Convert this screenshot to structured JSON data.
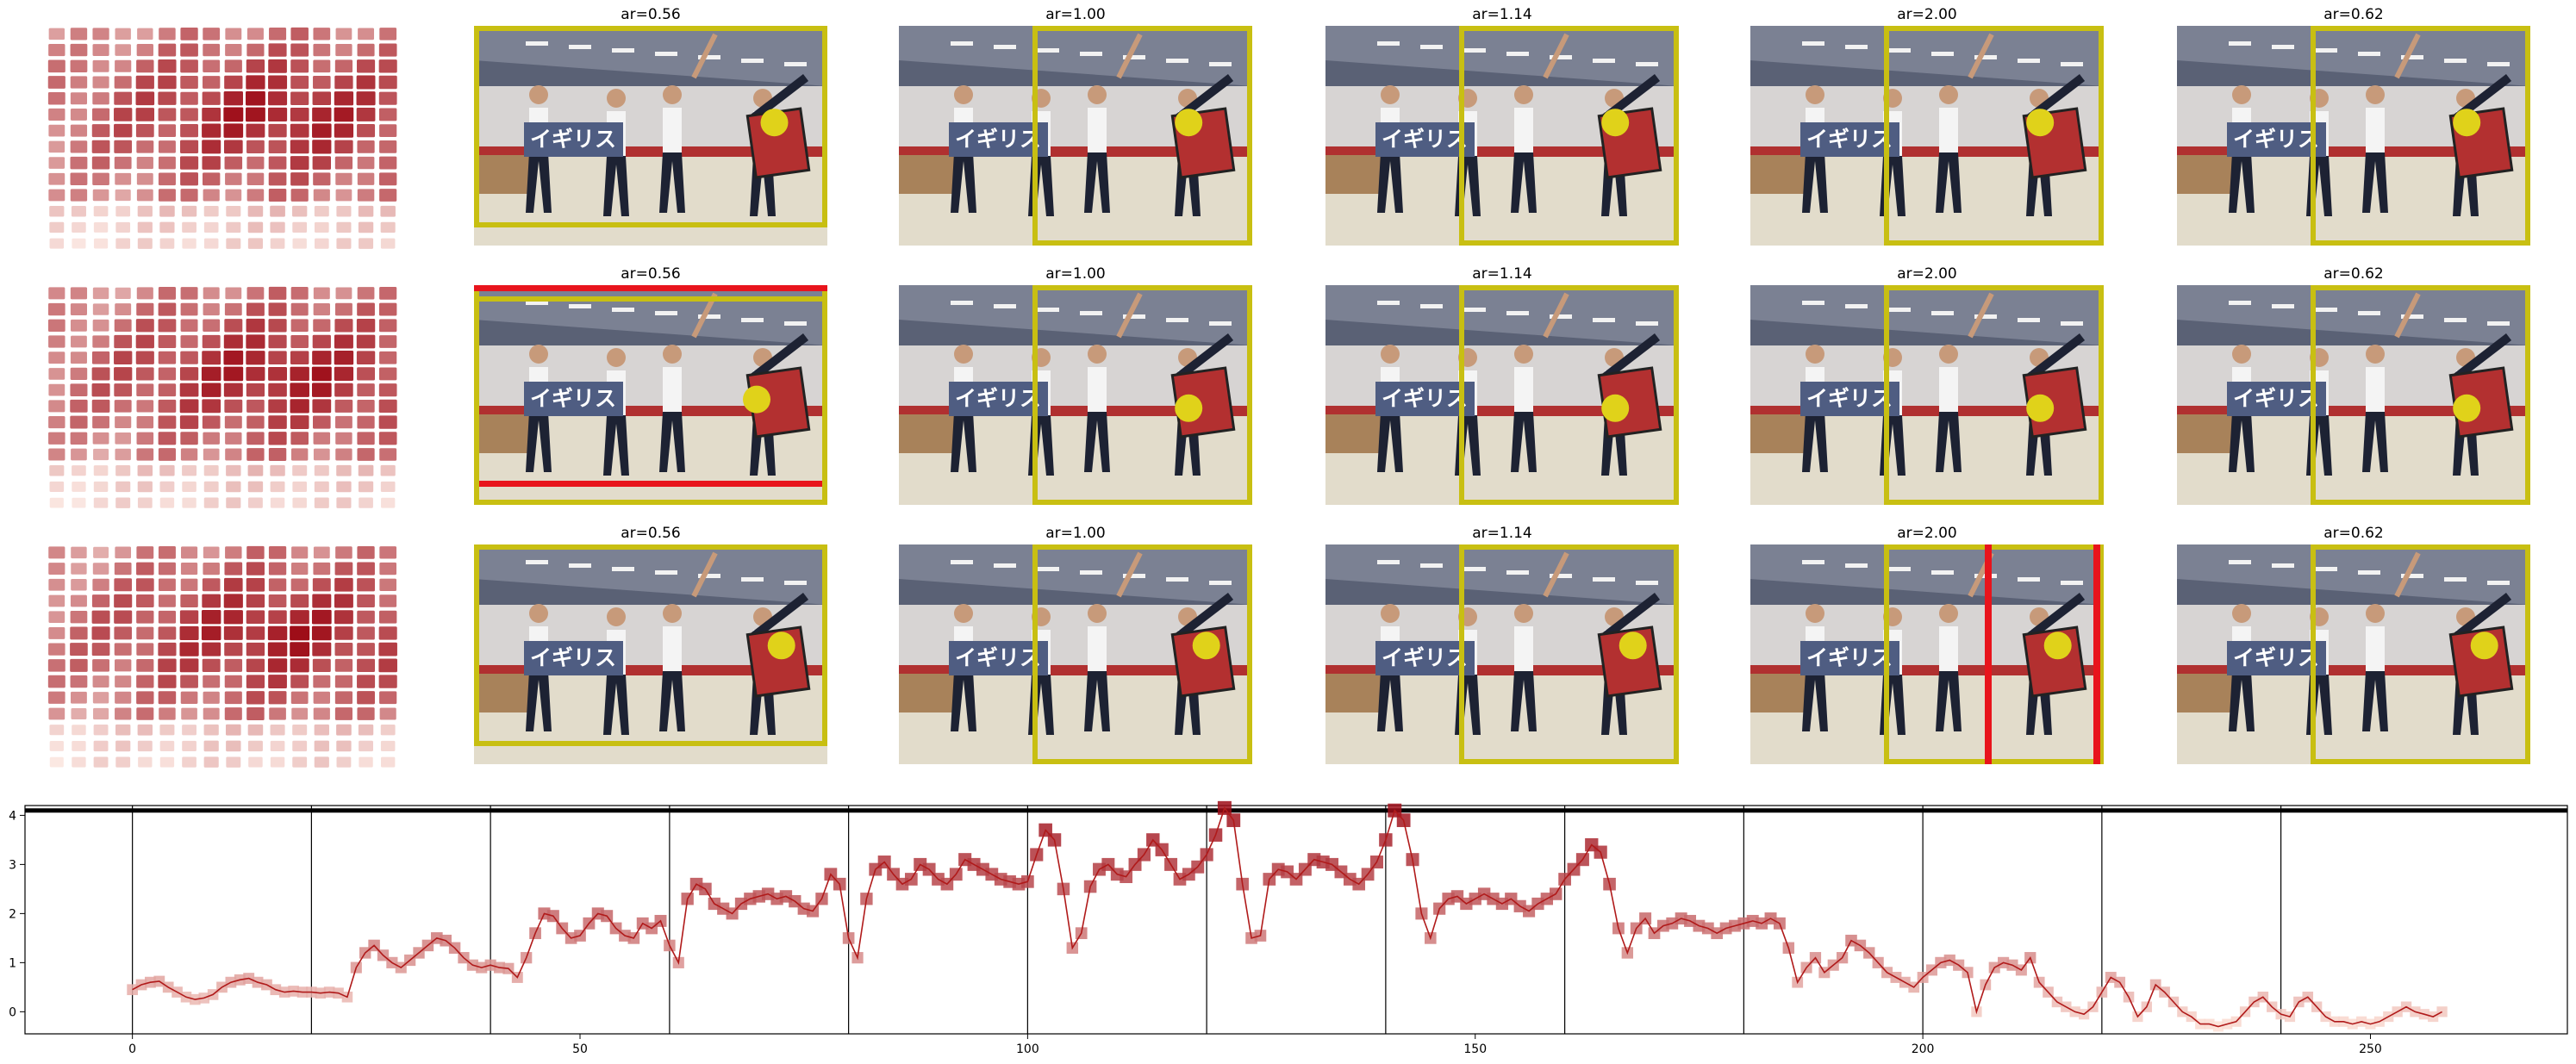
{
  "grid": {
    "rows": [
      {
        "cells": [
          {
            "title": "ar=0.56",
            "box": "yellow",
            "marks": [
              {
                "kind": "disc",
                "u": 0.85,
                "v": 0.44
              }
            ]
          },
          {
            "title": "ar=1.00",
            "box": "yellow",
            "marks": [
              {
                "kind": "disc",
                "u": 0.82,
                "v": 0.44
              }
            ]
          },
          {
            "title": "ar=1.14",
            "box": "yellow",
            "marks": [
              {
                "kind": "disc",
                "u": 0.82,
                "v": 0.44
              }
            ]
          },
          {
            "title": "ar=2.00",
            "box": "yellow",
            "marks": [
              {
                "kind": "disc",
                "u": 0.82,
                "v": 0.44
              }
            ]
          },
          {
            "title": "ar=0.62",
            "box": "yellow",
            "marks": [
              {
                "kind": "disc",
                "u": 0.82,
                "v": 0.44
              }
            ]
          }
        ]
      },
      {
        "cells": [
          {
            "title": "ar=0.56",
            "box": "yellow-red-h",
            "marks": [
              {
                "kind": "disc",
                "u": 0.8,
                "v": 0.52
              }
            ]
          },
          {
            "title": "ar=1.00",
            "box": "yellow",
            "marks": [
              {
                "kind": "disc",
                "u": 0.82,
                "v": 0.56
              }
            ]
          },
          {
            "title": "ar=1.14",
            "box": "yellow",
            "marks": [
              {
                "kind": "disc",
                "u": 0.82,
                "v": 0.56
              }
            ]
          },
          {
            "title": "ar=2.00",
            "box": "yellow",
            "marks": [
              {
                "kind": "disc",
                "u": 0.82,
                "v": 0.56
              }
            ]
          },
          {
            "title": "ar=0.62",
            "box": "yellow",
            "marks": [
              {
                "kind": "disc",
                "u": 0.82,
                "v": 0.56
              }
            ]
          }
        ]
      },
      {
        "cells": [
          {
            "title": "ar=0.56",
            "box": "yellow",
            "marks": [
              {
                "kind": "disc",
                "u": 0.87,
                "v": 0.46
              }
            ]
          },
          {
            "title": "ar=1.00",
            "box": "yellow",
            "marks": [
              {
                "kind": "disc",
                "u": 0.87,
                "v": 0.46
              }
            ]
          },
          {
            "title": "ar=1.14",
            "box": "yellow",
            "marks": [
              {
                "kind": "disc",
                "u": 0.87,
                "v": 0.46
              }
            ]
          },
          {
            "title": "ar=2.00",
            "box": "yellow-red-v",
            "marks": [
              {
                "kind": "disc",
                "u": 0.87,
                "v": 0.46
              }
            ]
          },
          {
            "title": "ar=0.62",
            "box": "yellow",
            "marks": [
              {
                "kind": "disc",
                "u": 0.87,
                "v": 0.46
              }
            ]
          }
        ]
      }
    ],
    "photo_text": "イギリス"
  },
  "chart_data": {
    "type": "line",
    "title": "",
    "xlabel": "",
    "ylabel": "",
    "xlim": [
      -12,
      272
    ],
    "ylim": [
      -0.45,
      4.2
    ],
    "xticks": [
      0,
      50,
      100,
      150,
      200,
      250
    ],
    "yticks": [
      0,
      1,
      2,
      3,
      4
    ],
    "vlines": [
      0,
      20,
      40,
      60,
      80,
      100,
      120,
      140,
      160,
      180,
      200,
      220,
      240
    ],
    "hline": 4.1,
    "grid": false,
    "series": [
      {
        "x_start": 0,
        "values": [
          0.45,
          0.55,
          0.6,
          0.62,
          0.5,
          0.4,
          0.3,
          0.25,
          0.28,
          0.35,
          0.5,
          0.6,
          0.65,
          0.68,
          0.6,
          0.55,
          0.45,
          0.4,
          0.42,
          0.4,
          0.4,
          0.38,
          0.4,
          0.38,
          0.3,
          0.9,
          1.2,
          1.35,
          1.15,
          1.0,
          0.9,
          1.05,
          1.2,
          1.35,
          1.5,
          1.45,
          1.3,
          1.1,
          0.95,
          0.9,
          0.95,
          0.9,
          0.88,
          0.7,
          1.1,
          1.6,
          2.0,
          1.95,
          1.7,
          1.5,
          1.55,
          1.8,
          2.0,
          1.95,
          1.7,
          1.55,
          1.5,
          1.8,
          1.7,
          1.85,
          1.35,
          1.0,
          2.3,
          2.6,
          2.5,
          2.2,
          2.1,
          2.0,
          2.2,
          2.3,
          2.35,
          2.4,
          2.3,
          2.35,
          2.25,
          2.1,
          2.05,
          2.3,
          2.8,
          2.6,
          1.5,
          1.1,
          2.3,
          2.9,
          3.05,
          2.8,
          2.6,
          2.7,
          3.0,
          2.9,
          2.7,
          2.6,
          2.8,
          3.1,
          3.0,
          2.9,
          2.8,
          2.7,
          2.65,
          2.6,
          2.65,
          3.2,
          3.7,
          3.5,
          2.5,
          1.3,
          1.6,
          2.55,
          2.9,
          3.0,
          2.8,
          2.75,
          3.0,
          3.2,
          3.5,
          3.3,
          3.0,
          2.7,
          2.8,
          2.95,
          3.2,
          3.6,
          4.15,
          3.9,
          2.6,
          1.5,
          1.55,
          2.7,
          2.9,
          2.85,
          2.7,
          2.9,
          3.1,
          3.05,
          3.0,
          2.85,
          2.7,
          2.6,
          2.8,
          3.05,
          3.5,
          4.1,
          3.9,
          3.1,
          2.0,
          1.5,
          2.1,
          2.3,
          2.35,
          2.2,
          2.3,
          2.4,
          2.3,
          2.2,
          2.3,
          2.15,
          2.05,
          2.2,
          2.3,
          2.4,
          2.7,
          2.9,
          3.1,
          3.4,
          3.25,
          2.6,
          1.7,
          1.2,
          1.7,
          1.9,
          1.6,
          1.75,
          1.8,
          1.9,
          1.85,
          1.75,
          1.7,
          1.6,
          1.7,
          1.75,
          1.8,
          1.85,
          1.8,
          1.9,
          1.8,
          1.3,
          0.6,
          0.9,
          1.1,
          0.8,
          0.95,
          1.1,
          1.45,
          1.35,
          1.2,
          1.0,
          0.8,
          0.7,
          0.6,
          0.5,
          0.7,
          0.85,
          1.0,
          1.05,
          0.95,
          0.8,
          0.0,
          0.55,
          0.9,
          1.0,
          0.95,
          0.85,
          1.1,
          0.6,
          0.4,
          0.2,
          0.1,
          0.0,
          -0.05,
          0.1,
          0.4,
          0.7,
          0.6,
          0.3,
          -0.1,
          0.1,
          0.55,
          0.4,
          0.2,
          0.0,
          -0.1,
          -0.25,
          -0.25,
          -0.3,
          -0.25,
          -0.2,
          0.0,
          0.2,
          0.3,
          0.1,
          -0.05,
          -0.1,
          0.2,
          0.3,
          0.1,
          -0.1,
          -0.2,
          -0.2,
          -0.25,
          -0.2,
          -0.25,
          -0.2,
          -0.1,
          0.0,
          0.1,
          0.0,
          -0.05,
          -0.1,
          0.0
        ]
      }
    ],
    "colors": {
      "line": "#b01a1a",
      "low": "#fde0d6",
      "high": "#9e0d18",
      "vline": "#000000",
      "hline": "#000000"
    }
  },
  "colors": {
    "box_yellow": "#c8bf12",
    "box_red": "#e8141c",
    "disc": "#e0d21a",
    "heat_low": "#fdece6",
    "heat_high": "#9e0d18"
  }
}
